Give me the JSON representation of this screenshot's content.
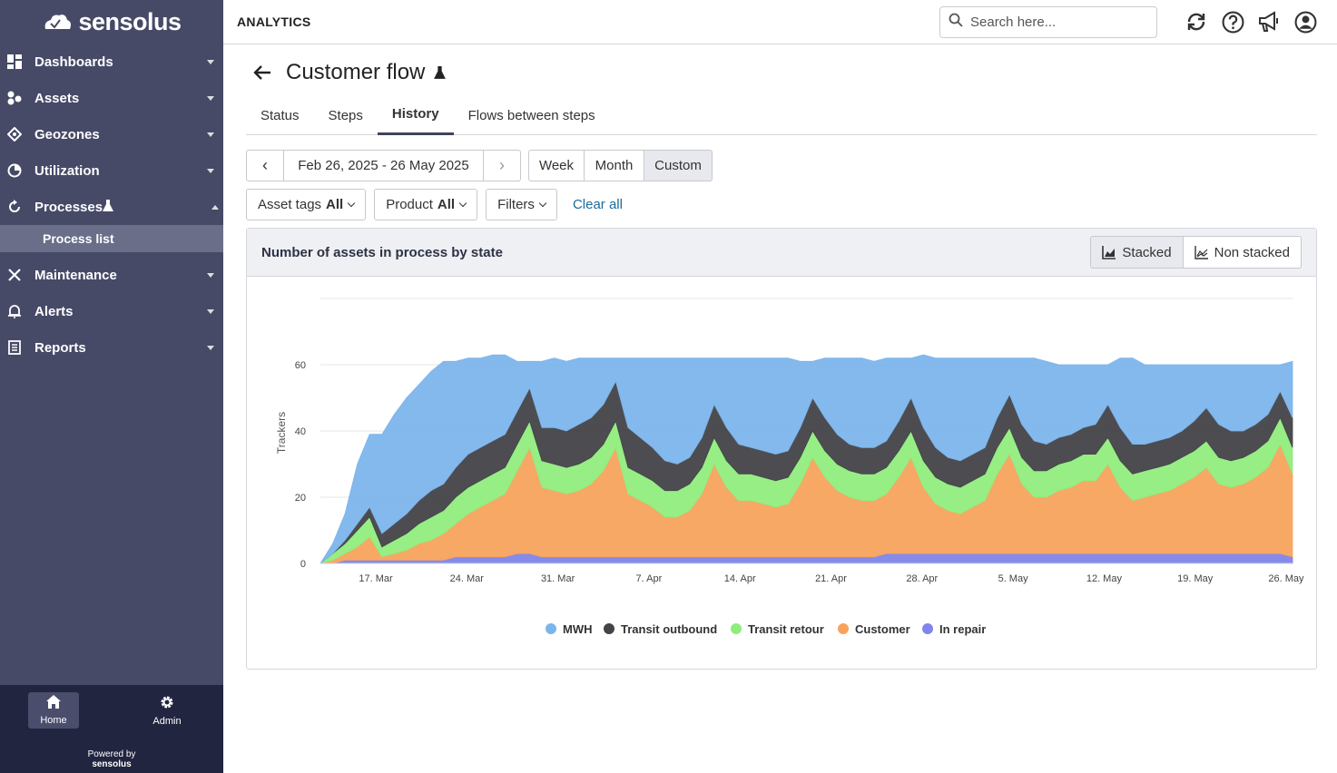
{
  "brand": {
    "logo_text": "sensolus"
  },
  "sidebar": {
    "items": [
      {
        "label": "Dashboards",
        "icon": "dashboard-icon"
      },
      {
        "label": "Assets",
        "icon": "assets-icon"
      },
      {
        "label": "Geozones",
        "icon": "geozone-icon"
      },
      {
        "label": "Utilization",
        "icon": "utilization-icon"
      },
      {
        "label": "Processes",
        "icon": "processes-icon",
        "expanded": true,
        "sub": "Process list"
      },
      {
        "label": "Maintenance",
        "icon": "maintenance-icon"
      },
      {
        "label": "Alerts",
        "icon": "bell-icon"
      },
      {
        "label": "Reports",
        "icon": "reports-icon"
      }
    ],
    "footer": {
      "home_label": "Home",
      "admin_label": "Admin",
      "powered_by": "Powered by",
      "powered_brand": "sensolus"
    }
  },
  "topbar": {
    "section_title": "ANALYTICS",
    "search_placeholder": "Search here..."
  },
  "page": {
    "title": "Customer flow",
    "tabs": [
      "Status",
      "Steps",
      "History",
      "Flows between steps"
    ],
    "active_tab": "History",
    "date_range": "Feb 26, 2025 - 26 May 2025",
    "prev_label": "‹",
    "next_label": "›",
    "range_options": [
      "Week",
      "Month",
      "Custom"
    ],
    "active_range": "Custom",
    "filters": {
      "asset_tags_label": "Asset tags",
      "asset_tags_value": "All",
      "product_label": "Product",
      "product_value": "All",
      "filters_label": "Filters",
      "clear_all": "Clear all"
    }
  },
  "panel": {
    "title": "Number of assets in process by state",
    "stacked_label": "Stacked",
    "non_stacked_label": "Non stacked",
    "active_mode": "Stacked"
  },
  "chart_data": {
    "type": "area",
    "stacked": true,
    "ylabel": "Trackers",
    "ylim": [
      0,
      80
    ],
    "yticks": [
      0,
      20,
      40,
      60
    ],
    "x_start": "Mar 10",
    "x_end": "May 27",
    "xtick_labels": [
      "17. Mar",
      "24. Mar",
      "31. Mar",
      "7. Apr",
      "14. Apr",
      "21. Apr",
      "28. Apr",
      "5. May",
      "12. May",
      "19. May",
      "26. May"
    ],
    "legend_position": "bottom-center",
    "series": [
      {
        "name": "In repair",
        "color": "#8085e9",
        "values": [
          0,
          0,
          1,
          1,
          1,
          1,
          1,
          1,
          1,
          1,
          1,
          2,
          2,
          2,
          2,
          2,
          3,
          3,
          2,
          2,
          2,
          2,
          2,
          2,
          2,
          2,
          2,
          2,
          2,
          2,
          2,
          2,
          2,
          2,
          2,
          2,
          2,
          2,
          2,
          2,
          2,
          2,
          2,
          2,
          2,
          2,
          3,
          3,
          3,
          3,
          3,
          3,
          3,
          3,
          3,
          3,
          3,
          3,
          3,
          3,
          3,
          3,
          3,
          3,
          3,
          3,
          3,
          3,
          3,
          3,
          3,
          3,
          3,
          3,
          3,
          3,
          3,
          3,
          3,
          2
        ]
      },
      {
        "name": "Customer",
        "color": "#f7a35c",
        "values": [
          0,
          1,
          2,
          4,
          7,
          1,
          2,
          3,
          5,
          6,
          8,
          10,
          13,
          15,
          17,
          19,
          25,
          32,
          21,
          20,
          19,
          20,
          22,
          26,
          33,
          19,
          17,
          15,
          12,
          12,
          14,
          19,
          28,
          21,
          17,
          17,
          16,
          15,
          16,
          22,
          30,
          24,
          20,
          18,
          17,
          17,
          18,
          23,
          29,
          20,
          15,
          13,
          12,
          14,
          16,
          24,
          30,
          21,
          17,
          17,
          19,
          20,
          22,
          22,
          27,
          20,
          16,
          17,
          18,
          19,
          21,
          23,
          26,
          21,
          20,
          21,
          23,
          26,
          33,
          25
        ]
      },
      {
        "name": "Transit retour",
        "color": "#90ed7d",
        "values": [
          0,
          2,
          3,
          5,
          6,
          3,
          4,
          5,
          6,
          7,
          7,
          8,
          8,
          8,
          8,
          8,
          8,
          8,
          8,
          8,
          8,
          8,
          8,
          8,
          8,
          8,
          8,
          8,
          8,
          8,
          8,
          8,
          8,
          8,
          8,
          8,
          8,
          8,
          8,
          8,
          8,
          8,
          8,
          8,
          8,
          8,
          8,
          8,
          8,
          8,
          8,
          8,
          8,
          8,
          8,
          8,
          8,
          8,
          8,
          8,
          8,
          8,
          8,
          8,
          8,
          8,
          8,
          8,
          8,
          8,
          8,
          8,
          8,
          8,
          8,
          8,
          8,
          8,
          8,
          8
        ]
      },
      {
        "name": "Transit outbound",
        "color": "#434348",
        "values": [
          0,
          0,
          1,
          2,
          3,
          4,
          5,
          6,
          7,
          8,
          8,
          9,
          10,
          10,
          10,
          10,
          10,
          10,
          10,
          11,
          11,
          12,
          12,
          12,
          12,
          12,
          11,
          10,
          9,
          8,
          8,
          9,
          10,
          10,
          9,
          8,
          8,
          8,
          8,
          9,
          10,
          10,
          9,
          8,
          8,
          8,
          8,
          9,
          10,
          10,
          9,
          8,
          8,
          8,
          8,
          9,
          10,
          10,
          9,
          8,
          8,
          8,
          8,
          9,
          10,
          10,
          9,
          8,
          8,
          8,
          8,
          9,
          10,
          10,
          9,
          8,
          8,
          8,
          8,
          9
        ]
      },
      {
        "name": "MWH",
        "color": "#7cb5ec",
        "values": [
          0,
          3,
          8,
          18,
          22,
          30,
          33,
          35,
          35,
          36,
          37,
          32,
          29,
          27,
          26,
          24,
          15,
          8,
          20,
          21,
          21,
          20,
          18,
          14,
          7,
          21,
          24,
          27,
          31,
          32,
          30,
          24,
          14,
          21,
          26,
          27,
          28,
          29,
          28,
          20,
          11,
          18,
          23,
          26,
          27,
          26,
          25,
          19,
          12,
          22,
          27,
          30,
          31,
          29,
          27,
          18,
          11,
          20,
          25,
          25,
          22,
          21,
          19,
          18,
          12,
          21,
          26,
          24,
          23,
          22,
          20,
          17,
          13,
          18,
          20,
          20,
          18,
          15,
          8,
          17
        ]
      }
    ]
  }
}
